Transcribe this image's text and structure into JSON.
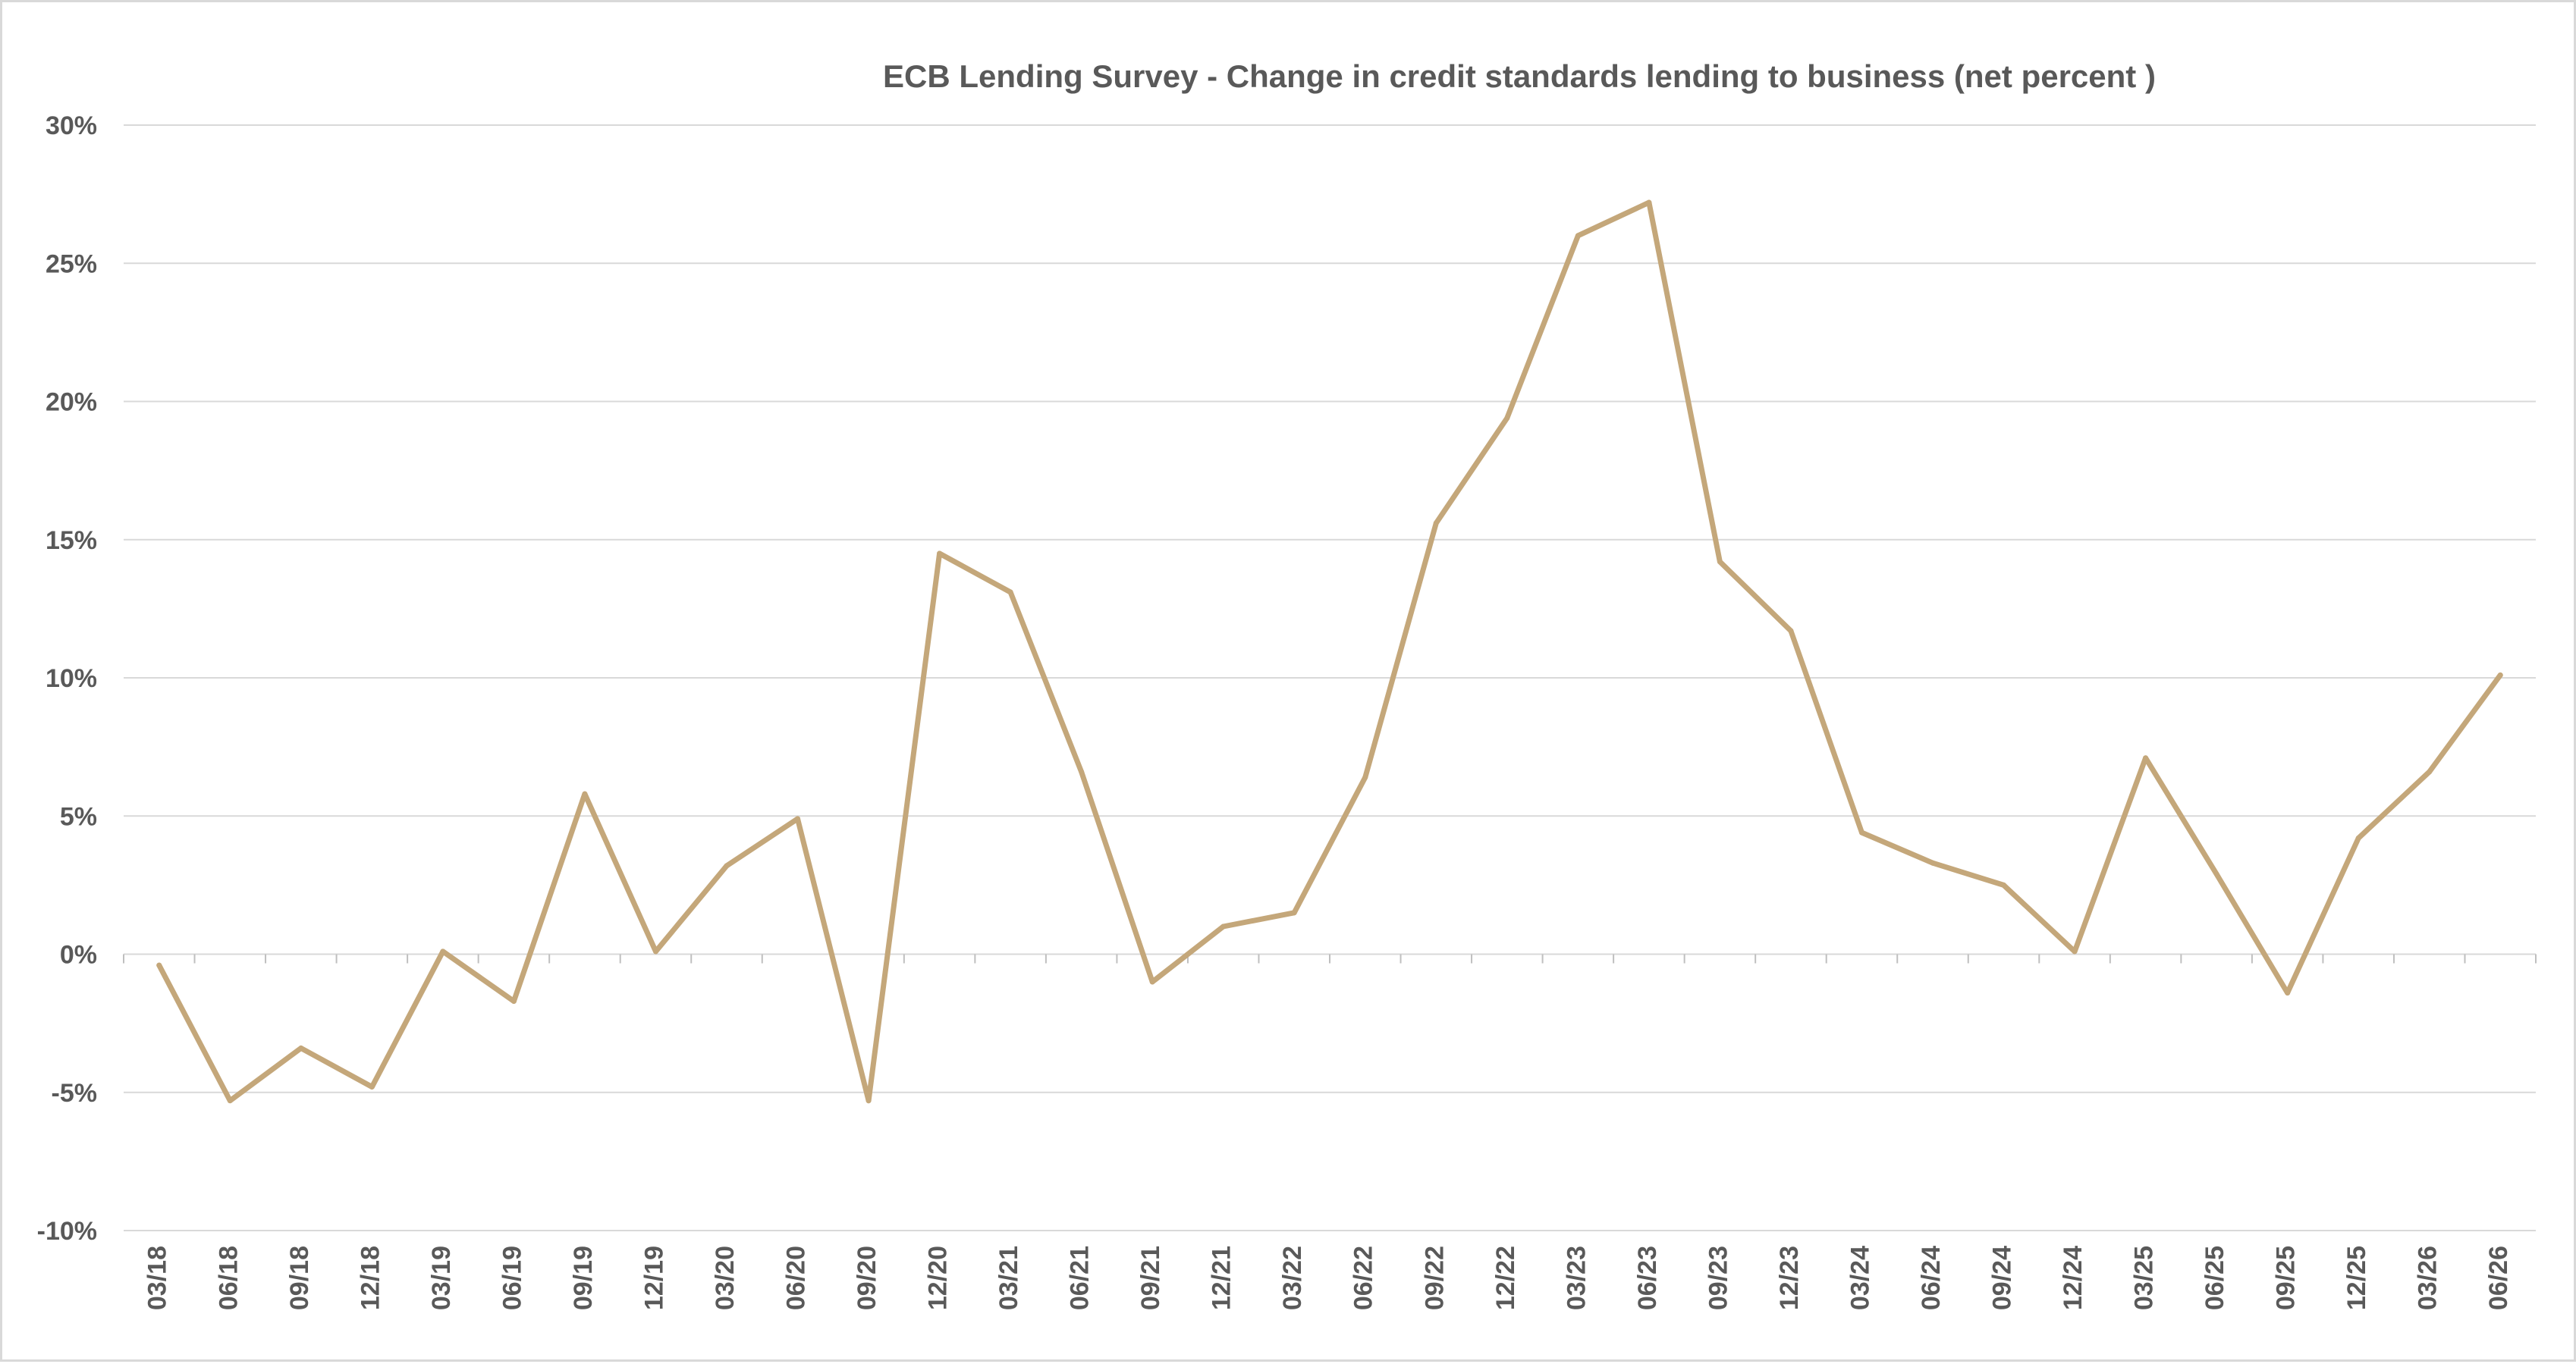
{
  "chart_data": {
    "type": "line",
    "title": "ECB Lending Survey - Change in credit standards lending to business (net percent )",
    "xlabel": "",
    "ylabel": "",
    "categories": [
      "03/18",
      "06/18",
      "09/18",
      "12/18",
      "03/19",
      "06/19",
      "09/19",
      "12/19",
      "03/20",
      "06/20",
      "09/20",
      "12/20",
      "03/21",
      "06/21",
      "09/21",
      "12/21",
      "03/22",
      "06/22",
      "09/22",
      "12/22",
      "03/23",
      "06/23",
      "09/23",
      "12/23",
      "03/24",
      "06/24",
      "09/24",
      "12/24",
      "03/25",
      "06/25",
      "09/25",
      "12/25",
      "03/26",
      "06/26"
    ],
    "series": [
      {
        "values": [
          -0.4,
          -5.3,
          -3.4,
          -4.8,
          0.1,
          -1.7,
          5.8,
          0.1,
          3.2,
          4.9,
          -5.3,
          14.5,
          13.1,
          6.6,
          -1.0,
          1.0,
          1.5,
          6.4,
          15.6,
          19.4,
          26.0,
          27.2,
          14.2,
          11.7,
          4.4,
          3.3,
          2.5,
          0.1,
          7.1,
          2.9,
          -1.4,
          4.2,
          6.6,
          10.1
        ]
      }
    ],
    "yticks": [
      "30%",
      "25%",
      "20%",
      "15%",
      "10%",
      "5%",
      "0%",
      "-5%",
      "-10%"
    ],
    "ylim": [
      -10,
      30
    ],
    "y_tick_step": 5,
    "grid": true,
    "legend": "none",
    "colors": {
      "series": "#c4a77a",
      "grid": "#d9d9d9",
      "text": "#595959"
    }
  }
}
